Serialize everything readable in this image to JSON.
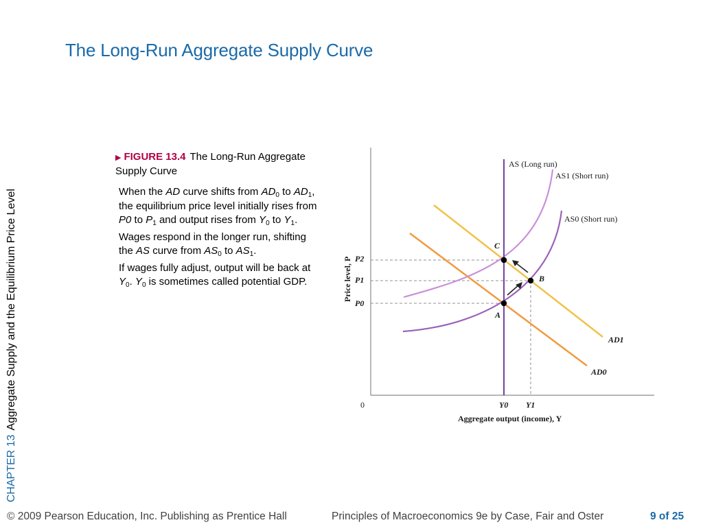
{
  "slide": {
    "title": "The Long-Run Aggregate Supply Curve",
    "side_chapter": "CHAPTER 13",
    "side_subtitle": "Aggregate Supply and the Equilibrium Price Level"
  },
  "figure": {
    "number": "FIGURE 13.4",
    "caption": "The Long-Run Aggregate Supply Curve"
  },
  "text": {
    "p1_a": "When the ",
    "p1_ad": "AD",
    "p1_b": " curve shifts from ",
    "p1_ad0": "AD",
    "p1_ad0_sub": "0",
    "p1_c": " to ",
    "p1_ad1": "AD",
    "p1_ad1_sub": "1",
    "p1_d": ", the equilibrium price level initially rises from ",
    "p1_p0": "P0",
    "p1_e": " to ",
    "p1_p1": "P",
    "p1_p1_sub": "1",
    "p1_f": " and output rises from ",
    "p1_y0": "Y",
    "p1_y0_sub": "0",
    "p1_g": " to ",
    "p1_y1": "Y",
    "p1_y1_sub": "1",
    "p1_h": ".",
    "p2_a": "Wages respond in the longer run, shifting the ",
    "p2_as": "AS",
    "p2_b": " curve from ",
    "p2_as0": "AS",
    "p2_as0_sub": "0",
    "p2_c": " to ",
    "p2_as1": "AS",
    "p2_as1_sub": "1",
    "p2_d": ".",
    "p3_a": "If wages fully adjust, output will be back at ",
    "p3_y0": "Y",
    "p3_y0_sub": "0",
    "p3_b": ". ",
    "p3_y0b": "Y",
    "p3_y0b_sub": "0",
    "p3_c": " is sometimes called potential GDP."
  },
  "diagram": {
    "x_axis_label": "Aggregate output (income), Y",
    "y_axis_label": "Price level, P",
    "origin": "0",
    "curves": {
      "as_long_run": "AS (Long run)",
      "as1": "AS1 (Short run)",
      "as0": "AS0 (Short run)",
      "ad1": "AD1",
      "ad0": "AD0"
    },
    "ticks": {
      "p2": "P2",
      "p1": "P1",
      "p0": "P0",
      "y0": "Y0",
      "y1": "Y1"
    },
    "points": {
      "a": "A",
      "b": "B",
      "c": "C"
    },
    "colors": {
      "as_long_run": "#7b4a9e",
      "as_short": "#9a62b8",
      "as1": "#c990d8",
      "ad1": "#f2c048",
      "ad0": "#f09a3e",
      "axis": "#8a8a8a",
      "dashed": "#909090"
    }
  },
  "footer": {
    "copyright": "© 2009 Pearson Education, Inc. Publishing as Prentice Hall",
    "book": "Principles of Macroeconomics 9e by Case, Fair and Oster",
    "page": "9 of 25"
  }
}
